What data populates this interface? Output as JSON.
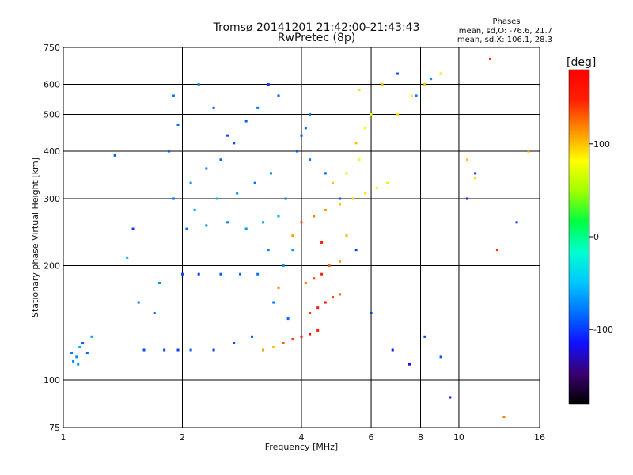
{
  "header": {
    "title_line1": "Tromsø 20141201 21:42:00-21:43:43",
    "title_line2": "RwPretec (8p)",
    "stats_title": "Phases",
    "stats_o": "mean, sd,O: -76.6, 21.7",
    "stats_x": "mean, sd,X: 106.1, 28.3"
  },
  "colorbar": {
    "unit": "[deg]",
    "tick_labels": [
      "100",
      "0",
      "-100"
    ],
    "tick_values": [
      100,
      0,
      -100
    ],
    "range": [
      -180,
      180
    ],
    "stops": [
      "#000000",
      "#3a0070",
      "#1010ff",
      "#0070ff",
      "#00c8ff",
      "#00ffd0",
      "#00ff40",
      "#a0ff00",
      "#ffff00",
      "#ff9000",
      "#ff2000",
      "#ff0000"
    ]
  },
  "chart_data": {
    "type": "scatter",
    "title": "Tromsø 20141201 21:42:00-21:43:43",
    "subtitle": "RwPretec (8p)",
    "xlabel": "Frequency [MHz]",
    "ylabel": "Stationary phase Virtual Height [km]",
    "xscale": "log",
    "yscale": "log",
    "xlim": [
      1,
      16
    ],
    "ylim": [
      75,
      750
    ],
    "grid": true,
    "x_ticks": [
      1,
      2,
      4,
      6,
      8,
      10,
      16
    ],
    "x_tick_labels": [
      "1",
      "2",
      "4",
      "6",
      "8",
      "10",
      "16"
    ],
    "y_ticks": [
      75,
      100,
      200,
      300,
      400,
      500,
      600,
      750
    ],
    "y_tick_labels": [
      "75",
      "100",
      "200",
      "300",
      "400",
      "500",
      "600",
      "750"
    ],
    "colorbar_label": "[deg]",
    "series": [
      {
        "name": "O-mode phase (mean -76.6, sd 21.7)",
        "points": [
          [
            1.05,
            118,
            -80
          ],
          [
            1.08,
            115,
            -70
          ],
          [
            1.1,
            122,
            -60
          ],
          [
            1.12,
            125,
            -90
          ],
          [
            1.15,
            118,
            -85
          ],
          [
            1.06,
            112,
            -75
          ],
          [
            1.18,
            130,
            -65
          ],
          [
            1.09,
            110,
            -70
          ],
          [
            1.35,
            390,
            -90
          ],
          [
            1.45,
            210,
            -60
          ],
          [
            1.5,
            250,
            -100
          ],
          [
            1.55,
            160,
            -80
          ],
          [
            1.6,
            120,
            -95
          ],
          [
            1.7,
            150,
            -85
          ],
          [
            1.75,
            180,
            -70
          ],
          [
            1.8,
            120,
            -95
          ],
          [
            1.85,
            400,
            -90
          ],
          [
            1.9,
            560,
            -80
          ],
          [
            1.95,
            120,
            -100
          ],
          [
            2.0,
            190,
            -95
          ],
          [
            2.05,
            250,
            -80
          ],
          [
            2.1,
            120,
            -90
          ],
          [
            2.2,
            190,
            -100
          ],
          [
            2.3,
            255,
            -70
          ],
          [
            2.4,
            120,
            -100
          ],
          [
            2.5,
            190,
            -90
          ],
          [
            2.6,
            260,
            -75
          ],
          [
            2.7,
            125,
            -95
          ],
          [
            2.8,
            190,
            -85
          ],
          [
            2.9,
            250,
            -70
          ],
          [
            3.0,
            130,
            -90
          ],
          [
            3.1,
            190,
            -80
          ],
          [
            3.2,
            260,
            -65
          ],
          [
            3.3,
            220,
            -75
          ],
          [
            3.4,
            160,
            -80
          ],
          [
            3.5,
            270,
            -60
          ],
          [
            3.6,
            200,
            -70
          ],
          [
            3.7,
            145,
            -85
          ],
          [
            3.8,
            220,
            -65
          ],
          [
            3.9,
            400,
            -90
          ],
          [
            4.0,
            440,
            -95
          ],
          [
            4.1,
            460,
            -85
          ],
          [
            4.2,
            500,
            -80
          ],
          [
            1.9,
            300,
            -80
          ],
          [
            2.1,
            330,
            -70
          ],
          [
            2.3,
            360,
            -75
          ],
          [
            2.5,
            380,
            -85
          ],
          [
            2.7,
            420,
            -95
          ],
          [
            2.9,
            480,
            -90
          ],
          [
            3.1,
            520,
            -80
          ],
          [
            3.3,
            600,
            -100
          ],
          [
            3.5,
            560,
            -85
          ],
          [
            2.2,
            600,
            -70
          ],
          [
            2.4,
            520,
            -90
          ],
          [
            2.6,
            440,
            -95
          ],
          [
            1.95,
            470,
            -85
          ],
          [
            2.15,
            280,
            -60
          ],
          [
            2.45,
            300,
            -55
          ],
          [
            2.75,
            310,
            -65
          ],
          [
            3.05,
            330,
            -80
          ],
          [
            3.35,
            350,
            -70
          ],
          [
            3.65,
            300,
            -75
          ],
          [
            4.2,
            380,
            -80
          ],
          [
            4.6,
            350,
            -85
          ],
          [
            5.0,
            300,
            -90
          ],
          [
            5.5,
            220,
            -95
          ],
          [
            6.0,
            150,
            -100
          ],
          [
            6.8,
            120,
            -110
          ],
          [
            7.5,
            110,
            -120
          ],
          [
            8.2,
            130,
            -100
          ],
          [
            9.0,
            115,
            -90
          ],
          [
            10.5,
            300,
            -110
          ],
          [
            11.0,
            350,
            -100
          ],
          [
            7.0,
            640,
            -90
          ],
          [
            7.8,
            560,
            -80
          ],
          [
            8.5,
            620,
            -70
          ],
          [
            9.5,
            90,
            -110
          ],
          [
            14.0,
            260,
            -100
          ]
        ]
      },
      {
        "name": "X-mode phase (mean 106.1, sd 28.3)",
        "points": [
          [
            3.2,
            120,
            110
          ],
          [
            3.4,
            122,
            100
          ],
          [
            3.6,
            125,
            130
          ],
          [
            3.8,
            128,
            140
          ],
          [
            4.0,
            130,
            150
          ],
          [
            4.2,
            132,
            160
          ],
          [
            4.4,
            135,
            150
          ],
          [
            4.2,
            150,
            140
          ],
          [
            4.4,
            155,
            150
          ],
          [
            4.6,
            160,
            160
          ],
          [
            4.8,
            165,
            140
          ],
          [
            5.0,
            168,
            130
          ],
          [
            4.1,
            180,
            120
          ],
          [
            4.3,
            185,
            140
          ],
          [
            4.5,
            190,
            150
          ],
          [
            4.7,
            200,
            130
          ],
          [
            5.0,
            205,
            110
          ],
          [
            4.0,
            260,
            130
          ],
          [
            4.3,
            270,
            120
          ],
          [
            4.6,
            280,
            110
          ],
          [
            5.0,
            290,
            100
          ],
          [
            5.4,
            300,
            95
          ],
          [
            5.8,
            310,
            90
          ],
          [
            6.2,
            320,
            80
          ],
          [
            6.6,
            330,
            70
          ],
          [
            4.8,
            330,
            100
          ],
          [
            5.2,
            350,
            90
          ],
          [
            5.6,
            380,
            80
          ],
          [
            5.5,
            420,
            100
          ],
          [
            5.8,
            460,
            80
          ],
          [
            6.0,
            500,
            70
          ],
          [
            5.6,
            580,
            90
          ],
          [
            6.4,
            600,
            100
          ],
          [
            7.0,
            500,
            90
          ],
          [
            7.6,
            560,
            70
          ],
          [
            8.2,
            600,
            100
          ],
          [
            9.0,
            640,
            90
          ],
          [
            10.5,
            380,
            100
          ],
          [
            11.0,
            340,
            90
          ],
          [
            12.0,
            700,
            150
          ],
          [
            12.5,
            220,
            140
          ],
          [
            15.0,
            400,
            110
          ],
          [
            13.0,
            80,
            120
          ],
          [
            3.5,
            175,
            120
          ],
          [
            3.8,
            240,
            110
          ],
          [
            4.5,
            230,
            160
          ],
          [
            5.2,
            240,
            100
          ]
        ]
      }
    ]
  }
}
